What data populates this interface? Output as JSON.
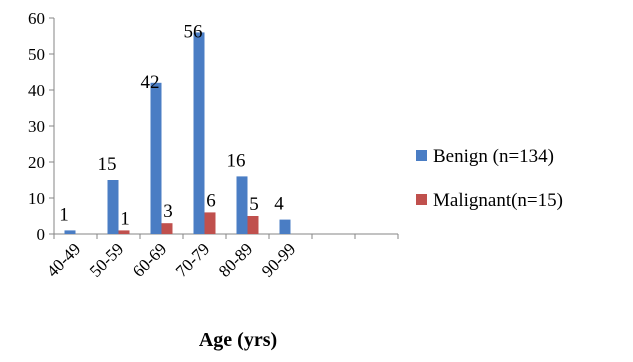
{
  "chart_data": {
    "type": "bar",
    "title": "",
    "xlabel": "Age (yrs)",
    "ylabel": "",
    "ylim": [
      0,
      60
    ],
    "yticks": [
      0,
      10,
      20,
      30,
      40,
      50,
      60
    ],
    "grid": false,
    "legend_position": "right",
    "categories": [
      "40-49",
      "50-59",
      "60-69",
      "70-79",
      "80-89",
      "90-99",
      "",
      ""
    ],
    "series": [
      {
        "name": "Benign (n=134)",
        "color": "#4a7dc4",
        "values": [
          1,
          15,
          42,
          56,
          16,
          4,
          0,
          0
        ],
        "labels": [
          "1",
          "15",
          "42",
          "56",
          "16",
          "4",
          "",
          ""
        ]
      },
      {
        "name": "Malignant(n=15)",
        "color": "#c0504d",
        "values": [
          0,
          1,
          3,
          6,
          5,
          0,
          0,
          0
        ],
        "labels": [
          "",
          "1",
          "3",
          "6",
          "5",
          "",
          "",
          ""
        ]
      }
    ]
  }
}
